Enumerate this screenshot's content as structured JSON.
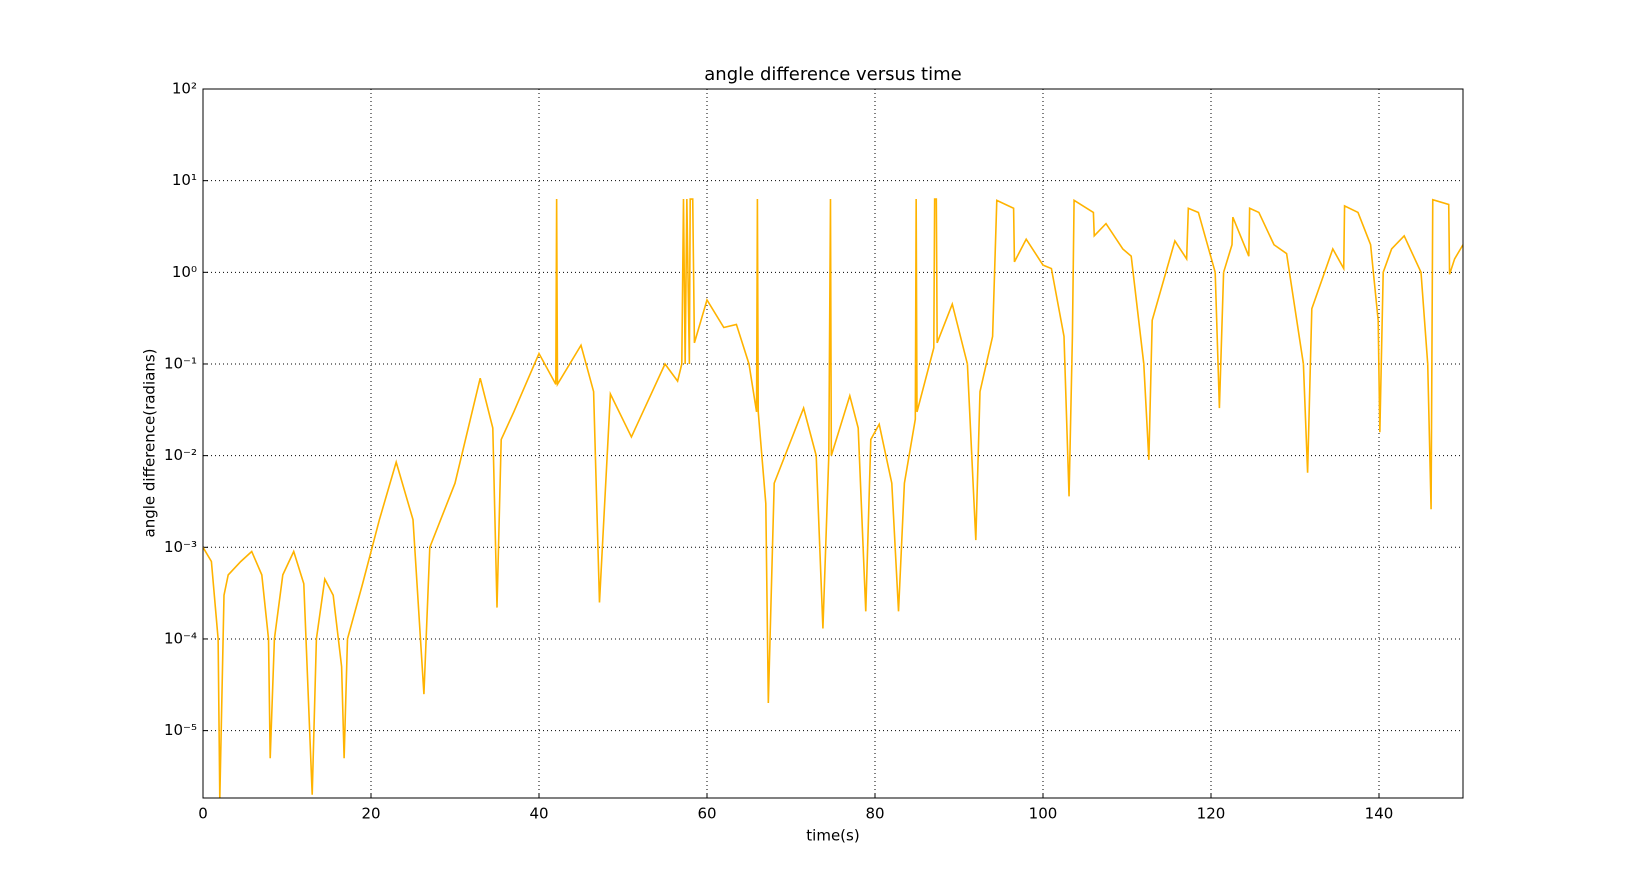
{
  "chart_data": {
    "type": "line",
    "title": "angle difference versus time",
    "x_label": "time(s)",
    "y_label": "angle difference(radians)",
    "log_y": true,
    "grid": true,
    "xlim": [
      0,
      150
    ],
    "ylim": [
      1.84e-06,
      100
    ],
    "xticks": [
      0,
      20,
      40,
      60,
      80,
      100,
      120,
      140
    ],
    "yticks": [
      {
        "value": 1e-05,
        "label": "10⁻⁵"
      },
      {
        "value": 0.0001,
        "label": "10⁻⁴"
      },
      {
        "value": 0.001,
        "label": "10⁻³"
      },
      {
        "value": 0.01,
        "label": "10⁻²"
      },
      {
        "value": 0.1,
        "label": "10⁻¹"
      },
      {
        "value": 1,
        "label": "10⁰"
      },
      {
        "value": 10,
        "label": "10¹"
      },
      {
        "value": 100,
        "label": "10²"
      }
    ],
    "series": [
      {
        "color": "#ffb300",
        "x": [
          0,
          1,
          1.8,
          2,
          2.5,
          3,
          4.5,
          5.8,
          7,
          7.8,
          8,
          8.5,
          9.5,
          10.8,
          12,
          13,
          13.5,
          14.5,
          15.5,
          16.5,
          16.8,
          17.2,
          19,
          21,
          23,
          25,
          26.3,
          27,
          30,
          33,
          34.5,
          35,
          35.5,
          37,
          40,
          42,
          42.1,
          42.2,
          45,
          46.5,
          47.2,
          48.5,
          51,
          55,
          56.5,
          57,
          57.2,
          57.4,
          57.6,
          57.9,
          58,
          58.3,
          58.5,
          60,
          62,
          63.5,
          65,
          65.9,
          66,
          66.1,
          67,
          67.3,
          68,
          71.5,
          73,
          73.8,
          74.5,
          74.7,
          74.8,
          77,
          78,
          78.9,
          79.5,
          80.5,
          82,
          82.8,
          83.5,
          84.8,
          84.9,
          85,
          87,
          87.1,
          87.3,
          87.4,
          89.2,
          91,
          92,
          92.5,
          94,
          94.5,
          96.5,
          96.6,
          98,
          100,
          101,
          102.5,
          103.1,
          103.5,
          103.7,
          106,
          106.1,
          107.5,
          109.5,
          110.5,
          112,
          112.6,
          113,
          115.7,
          117.1,
          117.3,
          118.5,
          120.5,
          121,
          121.5,
          122.5,
          122.6,
          124.5,
          124.6,
          125.7,
          127.5,
          129,
          131,
          131.5,
          132,
          134.5,
          135.8,
          135.9,
          137.5,
          139,
          139.9,
          140.1,
          140.5,
          141.5,
          143,
          145,
          145.8,
          146.2,
          146.4,
          148.3,
          148.4,
          149,
          150
        ],
        "values": [
          0.001,
          0.0007,
          0.0001,
          1.8e-06,
          0.0003,
          0.0005,
          0.0007,
          0.0009,
          0.0005,
          0.0001,
          5e-06,
          0.0001,
          0.0005,
          0.0009,
          0.0004,
          2e-06,
          0.0001,
          0.00045,
          0.0003,
          5e-05,
          5e-06,
          0.0001,
          0.0004,
          0.002,
          0.0085,
          0.002,
          2.5e-05,
          0.001,
          0.005,
          0.07,
          0.02,
          0.00022,
          0.015,
          0.03,
          0.13,
          0.06,
          6.3,
          0.06,
          0.16,
          0.05,
          0.00025,
          0.047,
          0.016,
          0.1,
          0.065,
          0.1,
          6.3,
          0.1,
          6.3,
          0.1,
          6.3,
          6.3,
          0.17,
          0.5,
          0.25,
          0.27,
          0.1,
          0.03,
          6.3,
          0.03,
          0.003,
          2e-05,
          0.005,
          0.033,
          0.01,
          0.00013,
          0.01,
          6.3,
          0.01,
          0.045,
          0.02,
          0.0002,
          0.015,
          0.022,
          0.005,
          0.0002,
          0.005,
          0.025,
          6.3,
          0.03,
          0.15,
          6.3,
          6.3,
          0.17,
          0.45,
          0.1,
          0.0012,
          0.05,
          0.2,
          6.1,
          5,
          1.3,
          2.3,
          1.2,
          1.1,
          0.2,
          0.0036,
          0.2,
          6.1,
          4.5,
          2.5,
          3.4,
          1.8,
          1.5,
          0.1,
          0.009,
          0.3,
          2.2,
          1.4,
          5,
          4.5,
          1,
          0.033,
          1,
          2,
          4,
          1.5,
          5,
          4.5,
          2,
          1.6,
          0.1,
          0.0065,
          0.4,
          1.8,
          1.1,
          5.3,
          4.5,
          2,
          0.3,
          0.018,
          1,
          1.8,
          2.5,
          1,
          0.1,
          0.0026,
          6.2,
          5.5,
          0.95,
          1.4,
          2
        ]
      }
    ]
  }
}
